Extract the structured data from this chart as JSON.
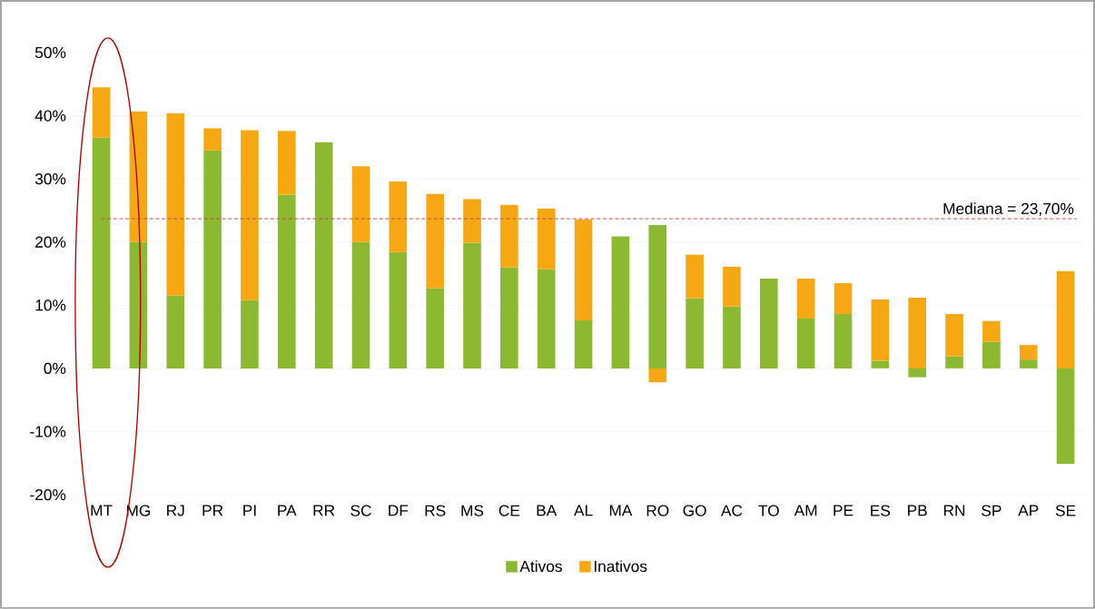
{
  "chart_data": {
    "type": "bar",
    "stacked": true,
    "categories": [
      "MT",
      "MG",
      "RJ",
      "PR",
      "PI",
      "PA",
      "RR",
      "SC",
      "DF",
      "RS",
      "MS",
      "CE",
      "BA",
      "AL",
      "MA",
      "RO",
      "GO",
      "AC",
      "TO",
      "AM",
      "PE",
      "ES",
      "PB",
      "RN",
      "SP",
      "AP",
      "SE"
    ],
    "series": [
      {
        "name": "Ativos",
        "color": "#8cb832",
        "values": [
          36.5,
          20,
          11.5,
          34.5,
          10.8,
          27.5,
          35.8,
          20,
          18.4,
          12.7,
          19.9,
          16,
          15.7,
          7.6,
          20.9,
          22.7,
          11.1,
          9.8,
          14.2,
          7.9,
          8.6,
          1.2,
          -1.4,
          1.9,
          4.2,
          1.4,
          -15.1
        ]
      },
      {
        "name": "Inativos",
        "color": "#f5a814",
        "values": [
          8,
          20.7,
          28.9,
          3.5,
          26.9,
          10.1,
          0,
          12,
          11.2,
          14.9,
          6.9,
          9.9,
          9.6,
          16,
          0,
          -2.2,
          6.9,
          6.3,
          0,
          6.3,
          4.9,
          9.7,
          11.2,
          6.7,
          3.3,
          2.3,
          15.4
        ]
      }
    ],
    "ylim": [
      -20,
      50
    ],
    "yticks": [
      {
        "value": -20,
        "label": "-20%"
      },
      {
        "value": -10,
        "label": "-10%"
      },
      {
        "value": 0,
        "label": "0%"
      },
      {
        "value": 10,
        "label": "10%"
      },
      {
        "value": 20,
        "label": "20%"
      },
      {
        "value": 30,
        "label": "30%"
      },
      {
        "value": 40,
        "label": "40%"
      },
      {
        "value": 50,
        "label": "50%"
      }
    ],
    "grid": "y",
    "legend": "bottom",
    "ref_lines": [
      {
        "axis": "y",
        "value": 23.7,
        "label": "Mediana = 23,70%",
        "color": "#c0504d",
        "line_style": "dashed"
      }
    ]
  }
}
